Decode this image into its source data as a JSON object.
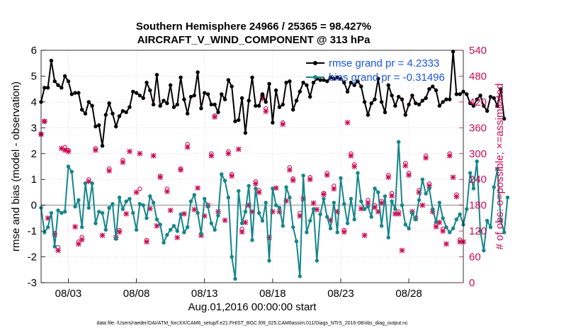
{
  "chart_data": {
    "type": "line",
    "title": "Southern Hemisphere 24966 / 25365 = 98.427%",
    "subtitle": "AIRCRAFT_V_WIND_COMPONENT @ 313 hPa",
    "xlabel": "Aug.01,2016 00:00:00 start",
    "ylabel": "rmse and bias (model - observation)",
    "ylabel_right": "# of obs: o=possible; ×=assimilated",
    "footer": "data file: /Users/raeder/DAI/ATM_forcXX/CAM6_setup/f.e21.FHIST_BGC.f09_025.CAM6assim.011/Diags_NTrS_2016-08/obs_diag_output.nc",
    "xlim": [
      1.0,
      32.0
    ],
    "ylim": [
      -3,
      6
    ],
    "ylim_right": [
      0,
      540
    ],
    "x_ticks": [
      3,
      8,
      13,
      18,
      23,
      28
    ],
    "x_tick_labels": [
      "08/03",
      "08/08",
      "08/13",
      "08/18",
      "08/23",
      "08/28"
    ],
    "y_ticks": [
      -3,
      -2,
      -1,
      0,
      1,
      2,
      3,
      4,
      5,
      6
    ],
    "y_tick_labels": [
      "-3",
      "-2",
      "-1",
      "0",
      "1",
      "2",
      "3",
      "4",
      "5",
      "6"
    ],
    "y_right_ticks": [
      0,
      60,
      120,
      180,
      240,
      300,
      360,
      420,
      480,
      540
    ],
    "y_right_tick_labels": [
      "0",
      "60",
      "120",
      "180",
      "240",
      "300",
      "360",
      "420",
      "480",
      "540"
    ],
    "legend": [
      "rmse grand pr = 4.2333",
      "bias grand pr = -0.31496"
    ],
    "legend_position": "top-right",
    "x_step": 0.25,
    "series": [
      {
        "name": "rmse",
        "color": "#000000",
        "values": [
          4.0,
          4.55,
          4.55,
          5.6,
          4.8,
          4.65,
          4.55,
          5.0,
          4.8,
          4.3,
          4.35,
          4.35,
          3.7,
          3.55,
          4.0,
          3.85,
          3.05,
          3.1,
          2.3,
          3.5,
          3.95,
          3.55,
          3.05,
          3.45,
          3.65,
          3.6,
          3.8,
          4.4,
          4.35,
          4.25,
          4.15,
          4.75,
          4.45,
          3.9,
          5.05,
          3.85,
          4.05,
          3.95,
          4.65,
          3.8,
          3.9,
          4.95,
          4.1,
          3.55,
          4.2,
          4.25,
          5.15,
          3.75,
          4.35,
          4.3,
          3.9,
          3.9,
          3.6,
          4.3,
          4.1,
          4.85,
          4.6,
          3.25,
          3.3,
          4.15,
          2.8,
          4.05,
          4.95,
          3.85,
          3.85,
          4.3,
          4.0,
          4.7,
          3.2,
          4.45,
          3.8,
          3.9,
          4.75,
          4.8,
          3.7,
          4.05,
          4.4,
          4.75,
          4.65,
          4.2,
          4.75,
          4.9,
          4.85,
          4.85,
          4.8,
          4.95,
          4.9,
          4.95,
          4.9,
          4.75,
          4.4,
          4.75,
          4.65,
          4.8,
          4.6,
          4.0,
          3.5,
          3.95,
          4.1,
          4.9,
          4.0,
          3.6,
          4.65,
          4.25,
          3.85,
          4.2,
          4.1,
          3.5,
          3.9,
          4.25,
          3.95,
          3.9,
          4.05,
          4.15,
          4.5,
          4.6,
          4.45,
          3.85,
          4.0,
          4.1,
          4.1,
          5.95,
          4.3,
          4.3,
          4.4,
          4.3,
          3.95,
          3.85,
          4.1,
          4.25,
          3.85,
          3.65,
          4.2,
          4.15,
          3.85,
          4.5,
          3.35
        ]
      },
      {
        "name": "bias",
        "color": "#14868a",
        "values": [
          -0.1,
          -1.05,
          -0.85,
          -0.3,
          -1.6,
          -0.2,
          -0.3,
          -0.25,
          1.5,
          1.3,
          -0.05,
          0.2,
          -0.85,
          0.85,
          -0.1,
          0.85,
          -0.7,
          -0.25,
          -0.3,
          -0.95,
          -0.1,
          0.05,
          -1.3,
          0.3,
          -0.15,
          0.15,
          0.25,
          -0.3,
          -0.95,
          0.05,
          0.0,
          -0.5,
          0.35,
          0.1,
          -0.55,
          -0.75,
          -1.45,
          -1.15,
          -0.95,
          -0.8,
          -1.0,
          -0.35,
          -1.05,
          -0.85,
          0.15,
          0.4,
          -0.3,
          -1.1,
          0.25,
          -0.05,
          -0.7,
          -0.95,
          -0.4,
          1.2,
          0.95,
          0.3,
          -2.0,
          -2.85,
          0.55,
          -0.7,
          -0.25,
          0.75,
          -1.35,
          0.65,
          -0.3,
          -0.6,
          0.1,
          -2.15,
          0.65,
          0.0,
          -0.1,
          -0.8,
          0.7,
          0.3,
          -0.85,
          -1.4,
          -2.75,
          1.15,
          -1.05,
          -0.6,
          -0.15,
          -2.15,
          -0.35,
          0.25,
          -0.45,
          -0.9,
          0.1,
          -1.05,
          1.05,
          0.05,
          -0.7,
          0.25,
          -0.55,
          1.25,
          0.15,
          -0.15,
          -0.05,
          -0.45,
          0.65,
          0.5,
          -0.8,
          0.35,
          -1.25,
          0.15,
          -0.15,
          2.45,
          0.0,
          -0.75,
          -0.9,
          -0.3,
          -0.55,
          0.2,
          1.0,
          0.45,
          0.65,
          -0.15,
          -0.65,
          0.1,
          -0.5,
          -0.85,
          -1.05,
          -0.9,
          -0.55,
          -0.35,
          -0.75,
          -0.15,
          1.25,
          0.65,
          1.7,
          -1.0,
          -1.75,
          -0.6,
          -0.85,
          0.7,
          1.4,
          -0.6,
          -1.05,
          0.3
        ]
      }
    ],
    "obs_possible": {
      "name": "possible",
      "color": "#cc0c55",
      "points": [
        [
          1.0,
          345
        ],
        [
          1.25,
          375
        ],
        [
          2.0,
          115
        ],
        [
          2.25,
          82
        ],
        [
          2.75,
          315
        ],
        [
          3.0,
          308
        ],
        [
          3.75,
          95
        ],
        [
          4.0,
          106
        ],
        [
          4.5,
          240
        ],
        [
          5.0,
          312
        ],
        [
          6.0,
          265
        ],
        [
          6.75,
          122
        ],
        [
          7.0,
          285
        ],
        [
          8.25,
          218
        ],
        [
          8.75,
          99
        ],
        [
          9.75,
          248
        ],
        [
          10.25,
          218
        ],
        [
          11.25,
          265
        ],
        [
          11.75,
          322
        ],
        [
          13.5,
          300
        ],
        [
          13.75,
          388
        ],
        [
          14.75,
          305
        ],
        [
          15.0,
          252
        ],
        [
          15.75,
          125
        ],
        [
          16.75,
          235
        ],
        [
          17.0,
          215
        ],
        [
          17.25,
          435
        ],
        [
          17.5,
          405
        ],
        [
          18.75,
          372
        ],
        [
          19.25,
          268
        ],
        [
          19.5,
          242
        ],
        [
          20.0,
          162
        ],
        [
          20.75,
          245
        ],
        [
          21.75,
          208
        ],
        [
          22.0,
          255
        ],
        [
          22.5,
          225
        ],
        [
          23.25,
          122
        ],
        [
          23.75,
          300
        ],
        [
          24.0,
          275
        ],
        [
          25.0,
          192
        ],
        [
          25.5,
          180
        ],
        [
          26.0,
          190
        ],
        [
          26.5,
          250
        ],
        [
          26.75,
          208
        ],
        [
          27.25,
          165
        ],
        [
          27.75,
          278
        ],
        [
          28.0,
          255
        ],
        [
          28.75,
          215
        ],
        [
          29.25,
          295
        ],
        [
          29.5,
          230
        ],
        [
          30.0,
          135
        ],
        [
          30.5,
          125
        ],
        [
          31.0,
          300
        ],
        [
          31.5,
          205
        ],
        [
          31.75,
          100
        ]
      ]
    },
    "obs_assimilated": {
      "name": "assimilated",
      "color": "#cc0c55",
      "points": [
        [
          1.0,
          345
        ],
        [
          1.25,
          375
        ],
        [
          1.5,
          150
        ],
        [
          2.0,
          112
        ],
        [
          2.25,
          75
        ],
        [
          2.5,
          312
        ],
        [
          2.75,
          308
        ],
        [
          3.0,
          305
        ],
        [
          3.5,
          130
        ],
        [
          3.75,
          90
        ],
        [
          4.0,
          100
        ],
        [
          4.5,
          235
        ],
        [
          5.0,
          308
        ],
        [
          5.5,
          110
        ],
        [
          6.0,
          260
        ],
        [
          6.5,
          105
        ],
        [
          6.75,
          118
        ],
        [
          7.0,
          280
        ],
        [
          7.25,
          160
        ],
        [
          7.5,
          305
        ],
        [
          8.0,
          210
        ],
        [
          8.25,
          300
        ],
        [
          8.75,
          95
        ],
        [
          9.0,
          172
        ],
        [
          9.25,
          295
        ],
        [
          9.5,
          132
        ],
        [
          9.75,
          245
        ],
        [
          10.25,
          212
        ],
        [
          10.5,
          168
        ],
        [
          11.0,
          105
        ],
        [
          11.25,
          262
        ],
        [
          11.5,
          160
        ],
        [
          11.75,
          315
        ],
        [
          12.25,
          170
        ],
        [
          12.5,
          220
        ],
        [
          12.75,
          110
        ],
        [
          13.0,
          155
        ],
        [
          13.25,
          180
        ],
        [
          13.5,
          295
        ],
        [
          13.75,
          385
        ],
        [
          14.0,
          165
        ],
        [
          14.5,
          145
        ],
        [
          14.75,
          300
        ],
        [
          15.0,
          248
        ],
        [
          15.5,
          310
        ],
        [
          15.75,
          118
        ],
        [
          16.0,
          140
        ],
        [
          16.25,
          180
        ],
        [
          16.5,
          165
        ],
        [
          16.75,
          230
        ],
        [
          17.0,
          210
        ],
        [
          17.25,
          428
        ],
        [
          17.5,
          398
        ],
        [
          17.75,
          105
        ],
        [
          18.0,
          165
        ],
        [
          18.25,
          220
        ],
        [
          18.5,
          165
        ],
        [
          18.75,
          368
        ],
        [
          19.0,
          190
        ],
        [
          19.25,
          262
        ],
        [
          19.5,
          238
        ],
        [
          20.0,
          155
        ],
        [
          20.25,
          195
        ],
        [
          20.75,
          240
        ],
        [
          21.0,
          185
        ],
        [
          21.25,
          170
        ],
        [
          21.75,
          205
        ],
        [
          22.0,
          250
        ],
        [
          22.25,
          145
        ],
        [
          22.5,
          218
        ],
        [
          22.75,
          165
        ],
        [
          23.25,
          118
        ],
        [
          23.5,
          372
        ],
        [
          23.75,
          295
        ],
        [
          24.0,
          270
        ],
        [
          24.5,
          172
        ],
        [
          24.75,
          110
        ],
        [
          25.0,
          185
        ],
        [
          25.5,
          175
        ],
        [
          25.75,
          165
        ],
        [
          26.0,
          185
        ],
        [
          26.5,
          245
        ],
        [
          26.75,
          202
        ],
        [
          27.0,
          160
        ],
        [
          27.25,
          160
        ],
        [
          27.5,
          75
        ],
        [
          27.75,
          272
        ],
        [
          28.0,
          250
        ],
        [
          28.25,
          165
        ],
        [
          28.5,
          150
        ],
        [
          28.75,
          210
        ],
        [
          29.0,
          180
        ],
        [
          29.25,
          290
        ],
        [
          29.5,
          225
        ],
        [
          29.75,
          165
        ],
        [
          30.0,
          130
        ],
        [
          30.25,
          140
        ],
        [
          30.5,
          120
        ],
        [
          30.75,
          90
        ],
        [
          31.0,
          295
        ],
        [
          31.25,
          245
        ],
        [
          31.5,
          200
        ],
        [
          31.75,
          95
        ],
        [
          32.0,
          95
        ]
      ]
    },
    "zero_line": 0,
    "grid": true
  }
}
